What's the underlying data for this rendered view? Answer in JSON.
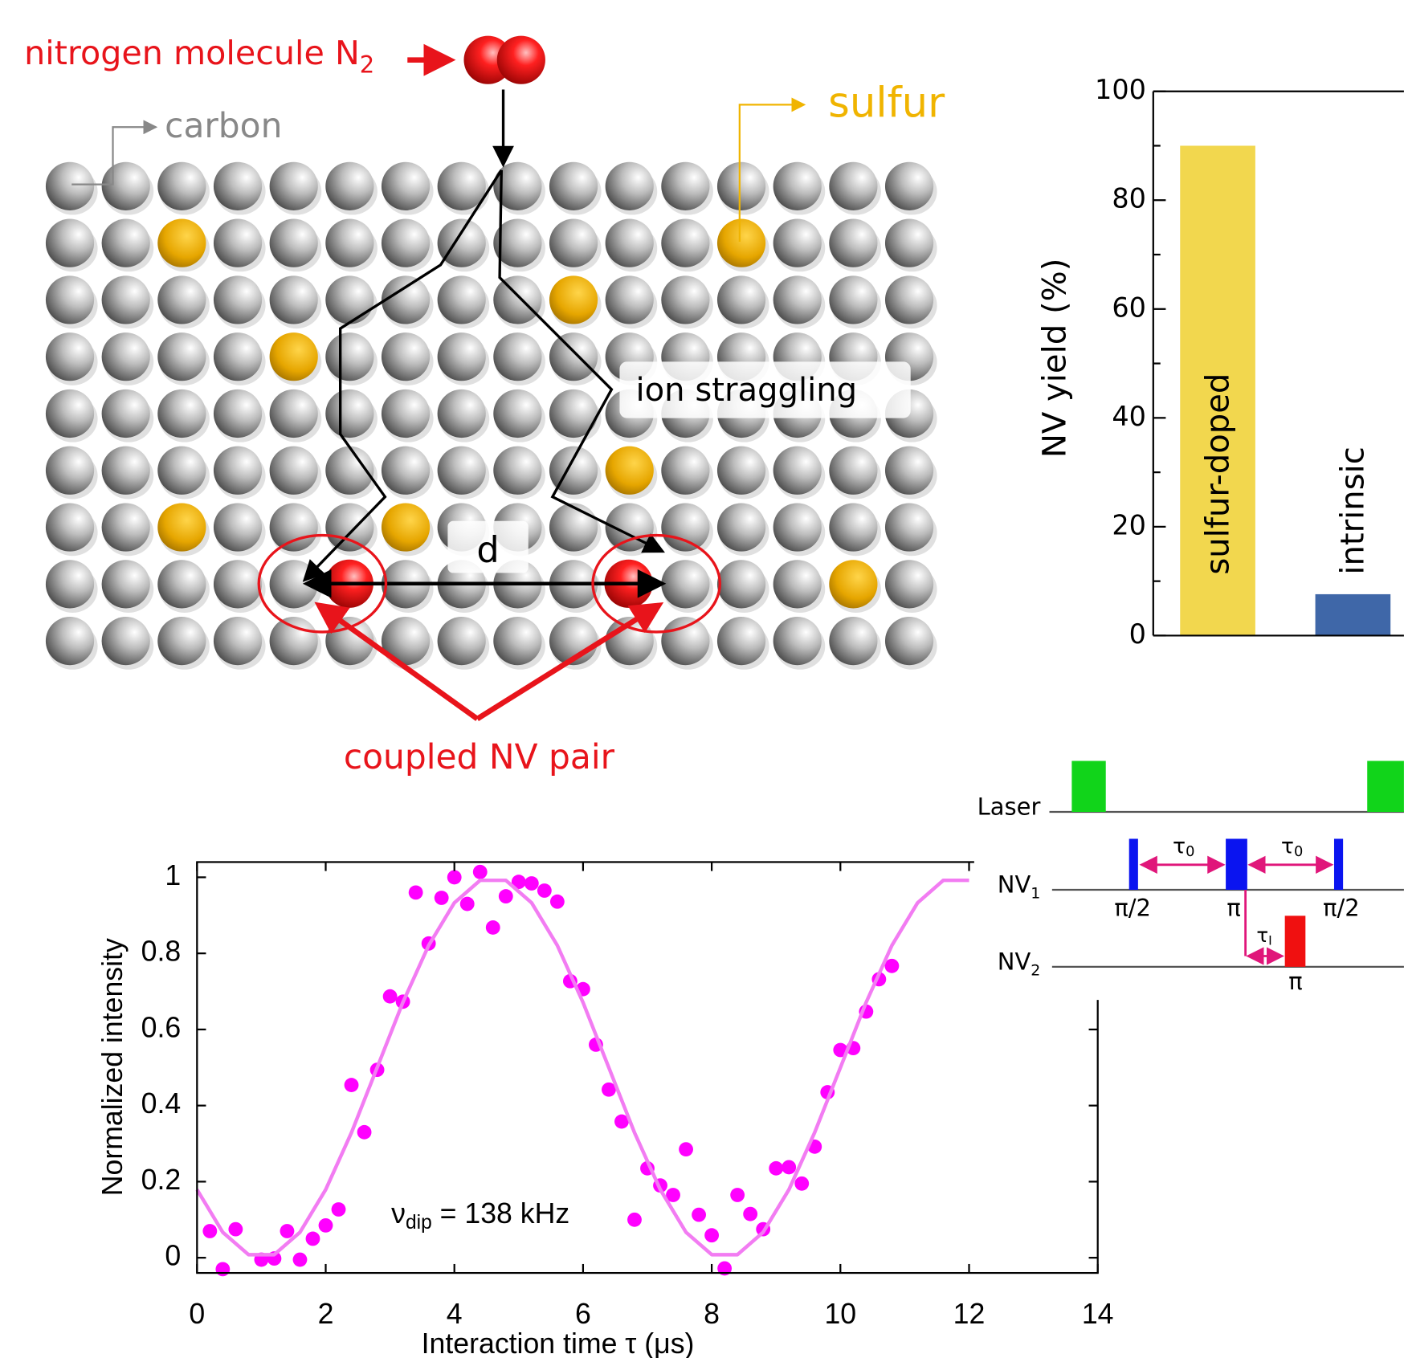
{
  "diagram": {
    "n2_label": {
      "text": "nitrogen molecule N",
      "sub": "2"
    },
    "carbon": "carbon",
    "sulfur": "sulfur",
    "ion_straggling": "ion straggling",
    "d": "d",
    "coupled": "coupled NV pair"
  },
  "pulse_sequence": {
    "laser": "Laser",
    "nv1": {
      "text": "NV",
      "sub": "1"
    },
    "nv2": {
      "text": "NV",
      "sub": "2"
    },
    "tau0_1": {
      "text": "τ",
      "sub": "0"
    },
    "tau0_2": {
      "text": "τ",
      "sub": "0"
    },
    "tau_i": {
      "text": "τ",
      "sub": "I"
    },
    "pi_half_1": "π/2",
    "pi_1": "π",
    "pi_half_2": "π/2",
    "pi_2": "π"
  },
  "chart_data": [
    {
      "type": "bar",
      "y_label": "NV yield (%)",
      "categories": [
        "sulfur-doped",
        "intrinsic"
      ],
      "values": [
        90,
        7.6
      ],
      "colors": [
        "#f2d74e",
        "#3f67a8"
      ],
      "ylim": [
        0,
        100
      ],
      "yticks": [
        0,
        20,
        40,
        60,
        80,
        100
      ],
      "minor_yticks": [
        10,
        30,
        50,
        70,
        90
      ]
    },
    {
      "type": "scatter",
      "x_label": "Interaction time τ (μs)",
      "y_label": "Normalized intensity",
      "annotation": {
        "text": "ν",
        "sub": "dip",
        "rest": " = 138 kHz"
      },
      "xlim": [
        0,
        14
      ],
      "ylim": [
        -0.04,
        1.04
      ],
      "xticks": [
        0,
        2,
        4,
        6,
        8,
        10,
        12,
        14
      ],
      "yticks": [
        0,
        0.2,
        0.4,
        0.6,
        0.8,
        1
      ],
      "series": [
        {
          "style": "markers",
          "color": "#ff00ff",
          "x": [
            0.2,
            0.4,
            0.6,
            1.0,
            1.2,
            1.4,
            1.6,
            1.8,
            2.0,
            2.2,
            2.4,
            2.6,
            2.8,
            3.0,
            3.2,
            3.4,
            3.6,
            3.8,
            4.0,
            4.2,
            4.4,
            4.6,
            4.8,
            5.0,
            5.2,
            5.4,
            5.6,
            5.8,
            6.0,
            6.2,
            6.4,
            6.6,
            6.8,
            7.0,
            7.2,
            7.4,
            7.6,
            7.8,
            8.0,
            8.2,
            8.4,
            8.6,
            8.8,
            9.0,
            9.2,
            9.4,
            9.6,
            9.8,
            10.0,
            10.2,
            10.4,
            10.6,
            10.8
          ],
          "values": [
            0.07,
            -0.03,
            0.075,
            -0.005,
            -0.002,
            0.07,
            -0.005,
            0.05,
            0.085,
            0.127,
            0.454,
            0.33,
            0.494,
            0.687,
            0.673,
            0.96,
            0.826,
            0.946,
            1.0,
            0.93,
            1.014,
            0.868,
            0.95,
            0.988,
            0.984,
            0.965,
            0.936,
            0.727,
            0.706,
            0.56,
            0.442,
            0.358,
            0.1,
            0.235,
            0.19,
            0.165,
            0.285,
            0.113,
            0.059,
            -0.028,
            0.165,
            0.115,
            0.075,
            0.235,
            0.238,
            0.195,
            0.292,
            0.435,
            0.546,
            0.551,
            0.647,
            0.732,
            0.767
          ]
        },
        {
          "style": "line",
          "color": "#f27cf2",
          "x": [
            0,
            0.4,
            0.8,
            1.2,
            1.6,
            2.0,
            2.4,
            2.8,
            3.2,
            3.6,
            4.0,
            4.4,
            4.8,
            5.2,
            5.6,
            6.0,
            6.4,
            6.8,
            7.2,
            7.6,
            8.0,
            8.4,
            8.8,
            9.2,
            9.6,
            10.0,
            10.4,
            10.8,
            11.2,
            11.6,
            12.0
          ],
          "values": [
            0.179,
            0.067,
            0.008,
            0.008,
            0.067,
            0.179,
            0.329,
            0.5,
            0.671,
            0.821,
            0.933,
            0.992,
            0.992,
            0.933,
            0.821,
            0.671,
            0.5,
            0.329,
            0.179,
            0.067,
            0.008,
            0.008,
            0.067,
            0.179,
            0.329,
            0.5,
            0.671,
            0.821,
            0.933,
            0.992,
            0.992
          ]
        }
      ]
    }
  ]
}
